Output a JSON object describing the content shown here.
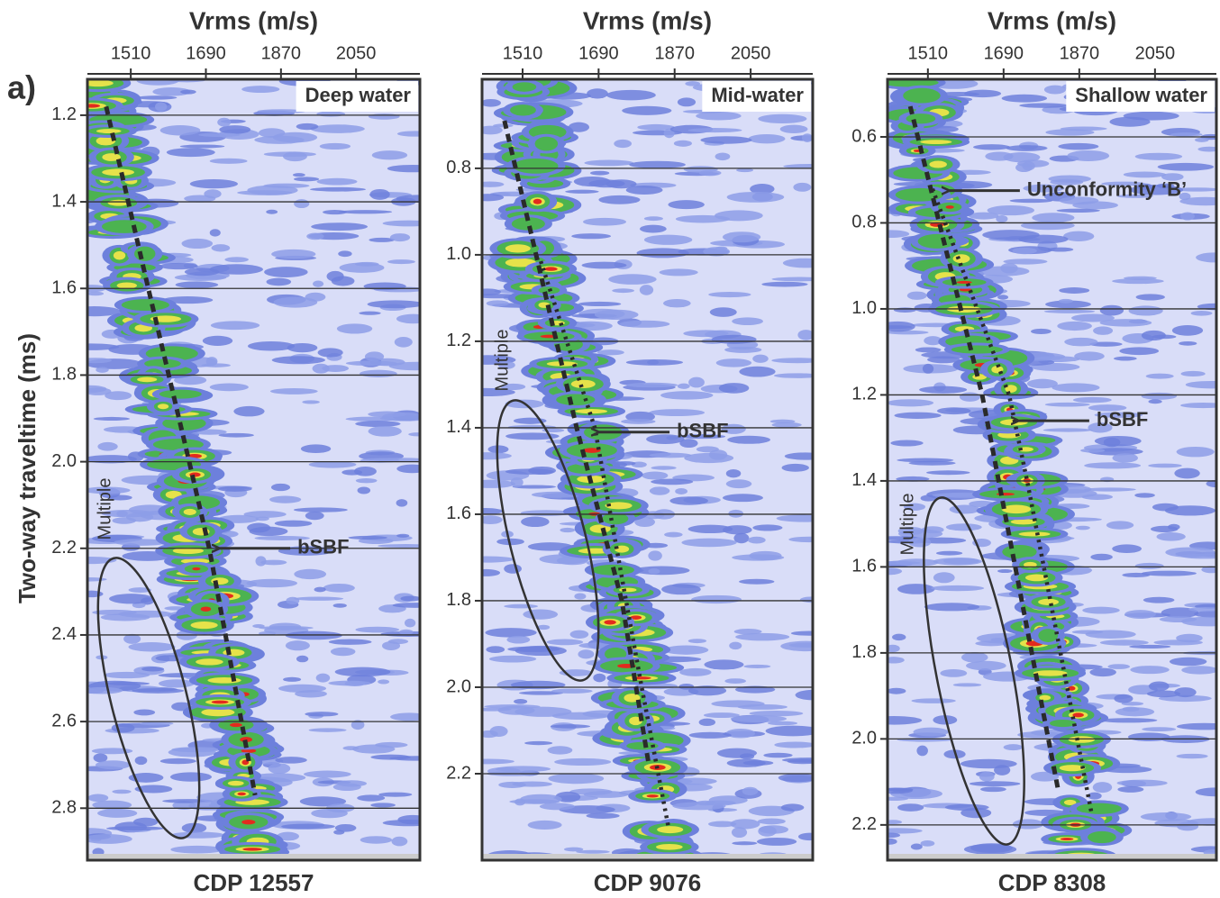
{
  "figure_label": "a)",
  "y_axis_label": "Two-way traveltime (ms)",
  "chart_data": [
    {
      "type": "semblance",
      "title": "Vrms (m/s)",
      "panel_label": "Deep water",
      "caption": "CDP 12557",
      "xlim": [
        1406,
        2203
      ],
      "ylim": [
        1.117,
        2.92
      ],
      "xticks": [
        1510,
        1690,
        1870,
        2050
      ],
      "yticks": [
        1.2,
        1.4,
        1.6,
        1.8,
        {
          "value": 2,
          "label": "2.0"
        },
        2.2,
        2.4,
        2.6,
        2.8
      ],
      "grid": true,
      "picks": [
        {
          "style": "dashed",
          "x": [
            1451,
            1552,
            1650,
            1698,
            1737,
            1808
          ],
          "y": [
            1.18,
            1.6,
            2.0,
            2.2,
            2.4,
            2.77
          ]
        }
      ],
      "annotations": [
        {
          "text": "bSBF",
          "x": 1715,
          "y": 2.2
        }
      ],
      "multiple_label": "Multiple"
    },
    {
      "type": "semblance",
      "title": "Vrms (m/s)",
      "panel_label": "Mid-water",
      "caption": "CDP 9076",
      "xlim": [
        1414,
        2197
      ],
      "ylim": [
        0.594,
        2.4
      ],
      "xticks": [
        1510,
        1690,
        1870,
        2050
      ],
      "yticks": [
        0.8,
        {
          "value": 1,
          "label": "1.0"
        },
        1.2,
        1.4,
        1.6,
        1.8,
        {
          "value": 2,
          "label": "2.0"
        },
        2.2
      ],
      "grid": true,
      "picks": [
        {
          "style": "dashed",
          "x": [
            1467,
            1542,
            1638,
            1745,
            1809
          ],
          "y": [
            0.69,
            1.0,
            1.4,
            1.8,
            2.18
          ]
        },
        {
          "style": "dotted",
          "x": [
            1553,
            1681,
            1792,
            1856
          ],
          "y": [
            1.015,
            1.4,
            2.0,
            2.327
          ]
        }
      ],
      "annotations": [
        {
          "text": "bSBF",
          "x": 1683,
          "y": 1.41
        }
      ],
      "multiple_label": "Multiple"
    },
    {
      "type": "semblance",
      "title": "Vrms (m/s)",
      "panel_label": "Shallow water",
      "caption": "CDP 8308",
      "xlim": [
        1414,
        2196
      ],
      "ylim": [
        0.466,
        2.282
      ],
      "xticks": [
        1510,
        1690,
        1870,
        2050
      ],
      "yticks": [
        0.6,
        0.8,
        {
          "value": 1,
          "label": "1.0"
        },
        1.2,
        1.4,
        1.6,
        1.8,
        {
          "value": 2,
          "label": "2.0"
        },
        2.2
      ],
      "grid": true,
      "picks": [
        {
          "style": "dashed",
          "x": [
            1468,
            1639,
            1821
          ],
          "y": [
            0.529,
            1.2,
            2.125
          ]
        },
        {
          "style": "dotted",
          "x": [
            1521,
            1703,
            1746,
            1900
          ],
          "y": [
            0.721,
            1.2,
            1.4,
            2.177
          ]
        }
      ],
      "annotations": [
        {
          "text": "Unconformity ‘B’",
          "x": 1553,
          "y": 0.725
        },
        {
          "text": "bSBF",
          "x": 1718,
          "y": 1.26
        }
      ],
      "multiple_label": "Multiple"
    }
  ]
}
